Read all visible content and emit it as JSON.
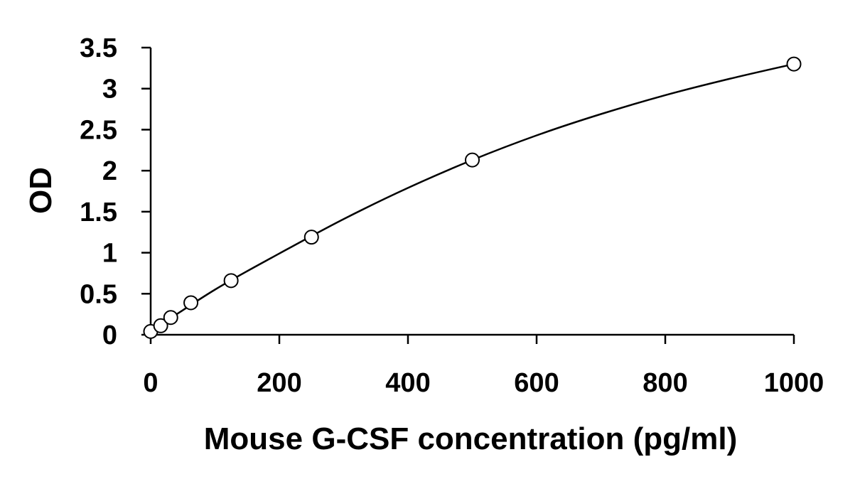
{
  "chart_data": {
    "type": "scatter",
    "title": "",
    "xlabel": "Mouse G-CSF concentration (pg/ml)",
    "ylabel": "OD",
    "xlim": [
      0,
      1000
    ],
    "ylim": [
      0,
      3.5
    ],
    "x_ticks": [
      0,
      200,
      400,
      600,
      800,
      1000
    ],
    "x_tick_labels": [
      "0",
      "200",
      "400",
      "600",
      "800",
      "1000"
    ],
    "y_ticks": [
      0,
      0.5,
      1,
      1.5,
      2,
      2.5,
      3,
      3.5
    ],
    "y_tick_labels": [
      "0",
      "0.5",
      "1",
      "1.5",
      "2",
      "2.5",
      "3",
      "3.5"
    ],
    "grid": false,
    "legend": "none",
    "points": [
      {
        "x": 0,
        "y": 0.04
      },
      {
        "x": 15.6,
        "y": 0.11
      },
      {
        "x": 31.2,
        "y": 0.21
      },
      {
        "x": 62.5,
        "y": 0.39
      },
      {
        "x": 125,
        "y": 0.66
      },
      {
        "x": 250,
        "y": 1.19
      },
      {
        "x": 500,
        "y": 2.13
      },
      {
        "x": 1000,
        "y": 3.3
      }
    ],
    "fit_curve": {
      "type": "smooth",
      "x": [
        0,
        100,
        200,
        300,
        400,
        500,
        600,
        700,
        800,
        900,
        1000
      ],
      "y": [
        0.04,
        0.55,
        0.99,
        1.41,
        1.79,
        2.13,
        2.43,
        2.69,
        2.92,
        3.12,
        3.3
      ]
    },
    "marker": "open-circle",
    "colors": {
      "line": "#000000",
      "marker_edge": "#000000",
      "marker_fill": "#ffffff"
    }
  }
}
